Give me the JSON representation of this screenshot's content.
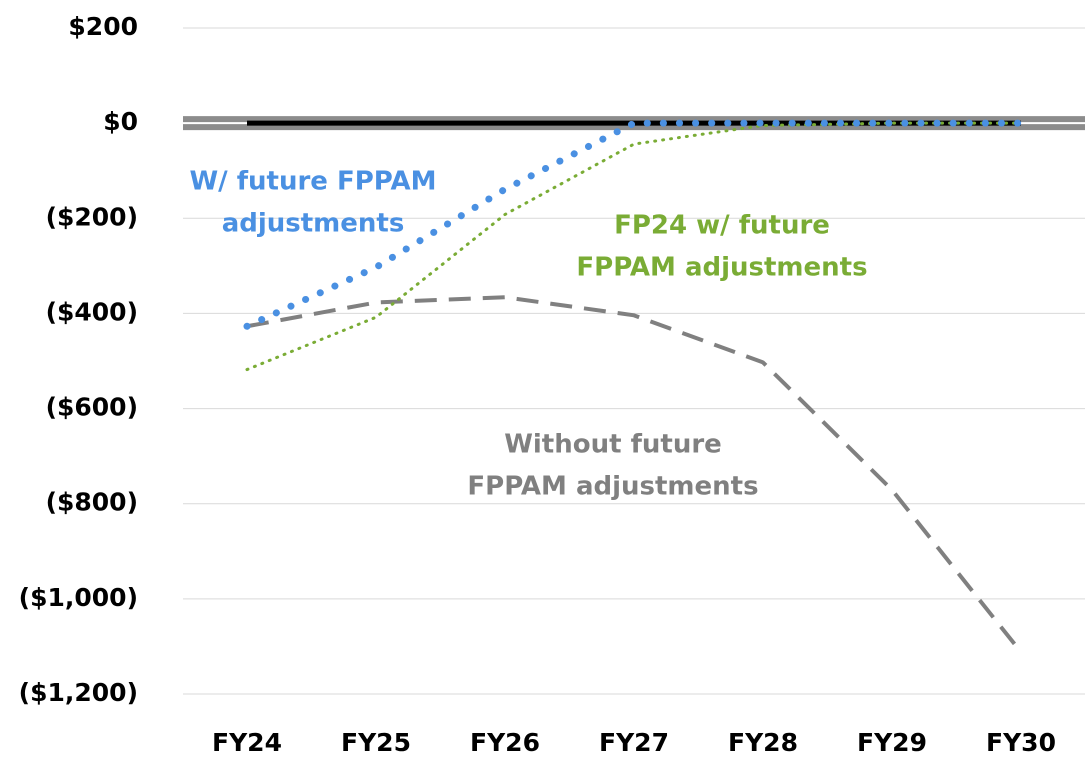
{
  "chart_data": {
    "type": "line",
    "categories": [
      "FY24",
      "FY25",
      "FY26",
      "FY27",
      "FY28",
      "FY29",
      "FY30"
    ],
    "series": [
      {
        "color": "#000000",
        "style": "solid",
        "values": [
          0,
          0,
          0,
          0,
          0,
          0,
          0
        ]
      },
      {
        "color": "#808080",
        "style": "dashed",
        "values": [
          -427,
          -377,
          -366,
          -404,
          -503,
          -771,
          -1112
        ]
      },
      {
        "color": "#7aac35",
        "style": "dotted",
        "values": [
          -518,
          -408,
          -192,
          -44,
          -5,
          0,
          0
        ]
      },
      {
        "color": "#4a90e2",
        "style": "dotted-thick",
        "values": [
          -427,
          -303,
          -139,
          0,
          0,
          0,
          0
        ]
      }
    ],
    "annotations": [
      {
        "lines": [
          "W/ future FPPAM",
          "adjustments"
        ],
        "color": "#4a90e2"
      },
      {
        "lines": [
          "FP24 w/ future",
          "FPPAM adjustments"
        ],
        "color": "#7aac35"
      },
      {
        "lines": [
          "Without future",
          "FPPAM adjustments"
        ],
        "color": "#808080"
      }
    ],
    "ylim": [
      -1200,
      200
    ],
    "yticks": [
      {
        "value": 200,
        "label": "$200"
      },
      {
        "value": 0,
        "label": "$0"
      },
      {
        "value": -200,
        "label": "($200)"
      },
      {
        "value": -400,
        "label": "($400)"
      },
      {
        "value": -600,
        "label": "($600)"
      },
      {
        "value": -800,
        "label": "($800)"
      },
      {
        "value": -1000,
        "label": "($1,000)"
      },
      {
        "value": -1200,
        "label": "($1,200)"
      }
    ],
    "grid": true
  }
}
